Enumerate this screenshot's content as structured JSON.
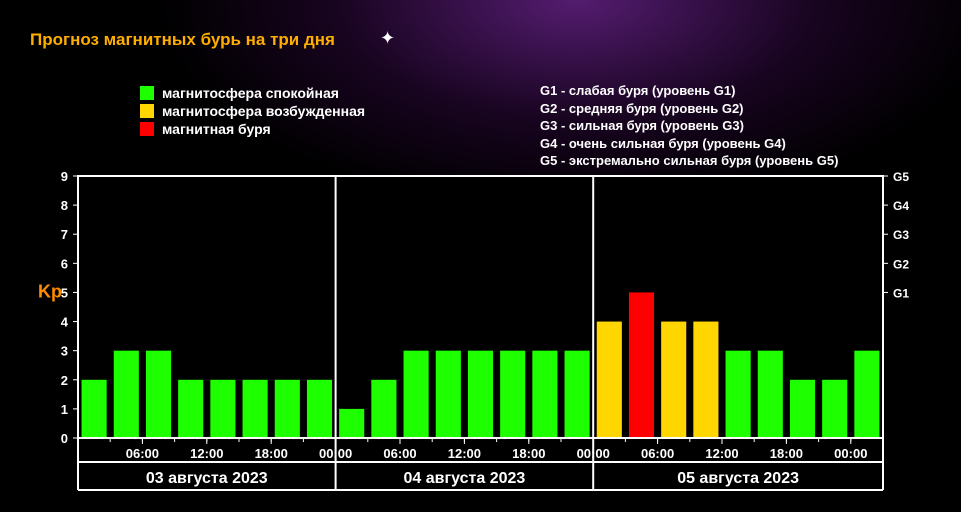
{
  "title": "Прогноз магнитных бурь на три дня",
  "background_color": "#000000",
  "title_color": "#ffae00",
  "text_color": "#ffffff",
  "kp_label": "Kp",
  "kp_label_color": "#ff8c00",
  "legend_colors": [
    {
      "color": "#1eff00",
      "label": "магнитосфера спокойная"
    },
    {
      "color": "#ffd600",
      "label": "магнитосфера возбужденная"
    },
    {
      "color": "#ff0000",
      "label": "магнитная буря"
    }
  ],
  "legend_g": [
    "G1 - слабая буря (уровень G1)",
    "G2 - средняя буря (уровень G2)",
    "G3 - сильная буря (уровень G3)",
    "G4 - очень сильная буря (уровень G4)",
    "G5 - экстремально сильная буря (уровень G5)"
  ],
  "chart": {
    "type": "bar",
    "y_ticks": [
      0,
      1,
      2,
      3,
      4,
      5,
      6,
      7,
      8,
      9
    ],
    "ylim": [
      0,
      9
    ],
    "right_labels": [
      {
        "y": 5,
        "label": "G1"
      },
      {
        "y": 6,
        "label": "G2"
      },
      {
        "y": 7,
        "label": "G3"
      },
      {
        "y": 8,
        "label": "G4"
      },
      {
        "y": 9,
        "label": "G5"
      }
    ],
    "x_hours": [
      "06:00",
      "12:00",
      "18:00",
      "00:00",
      "06:00",
      "12:00",
      "18:00",
      "00:00",
      "06:00",
      "12:00",
      "18:00",
      "00:00"
    ],
    "days": [
      "03 августа 2023",
      "04 августа 2023",
      "05 августа 2023"
    ],
    "bars": [
      {
        "v": 2,
        "c": "#1eff00"
      },
      {
        "v": 3,
        "c": "#1eff00"
      },
      {
        "v": 3,
        "c": "#1eff00"
      },
      {
        "v": 2,
        "c": "#1eff00"
      },
      {
        "v": 2,
        "c": "#1eff00"
      },
      {
        "v": 2,
        "c": "#1eff00"
      },
      {
        "v": 2,
        "c": "#1eff00"
      },
      {
        "v": 2,
        "c": "#1eff00"
      },
      {
        "v": 1,
        "c": "#1eff00"
      },
      {
        "v": 2,
        "c": "#1eff00"
      },
      {
        "v": 3,
        "c": "#1eff00"
      },
      {
        "v": 3,
        "c": "#1eff00"
      },
      {
        "v": 3,
        "c": "#1eff00"
      },
      {
        "v": 3,
        "c": "#1eff00"
      },
      {
        "v": 3,
        "c": "#1eff00"
      },
      {
        "v": 3,
        "c": "#1eff00"
      },
      {
        "v": 4,
        "c": "#ffd600"
      },
      {
        "v": 5,
        "c": "#ff0000"
      },
      {
        "v": 4,
        "c": "#ffd600"
      },
      {
        "v": 4,
        "c": "#ffd600"
      },
      {
        "v": 3,
        "c": "#1eff00"
      },
      {
        "v": 3,
        "c": "#1eff00"
      },
      {
        "v": 2,
        "c": "#1eff00"
      },
      {
        "v": 2,
        "c": "#1eff00"
      },
      {
        "v": 3,
        "c": "#1eff00"
      }
    ],
    "bar_width": 0.78,
    "grid_color": "#555555",
    "axis_color": "#ffffff",
    "font_size_axis": 13,
    "font_size_date": 16,
    "plot_bg": "#000000"
  }
}
